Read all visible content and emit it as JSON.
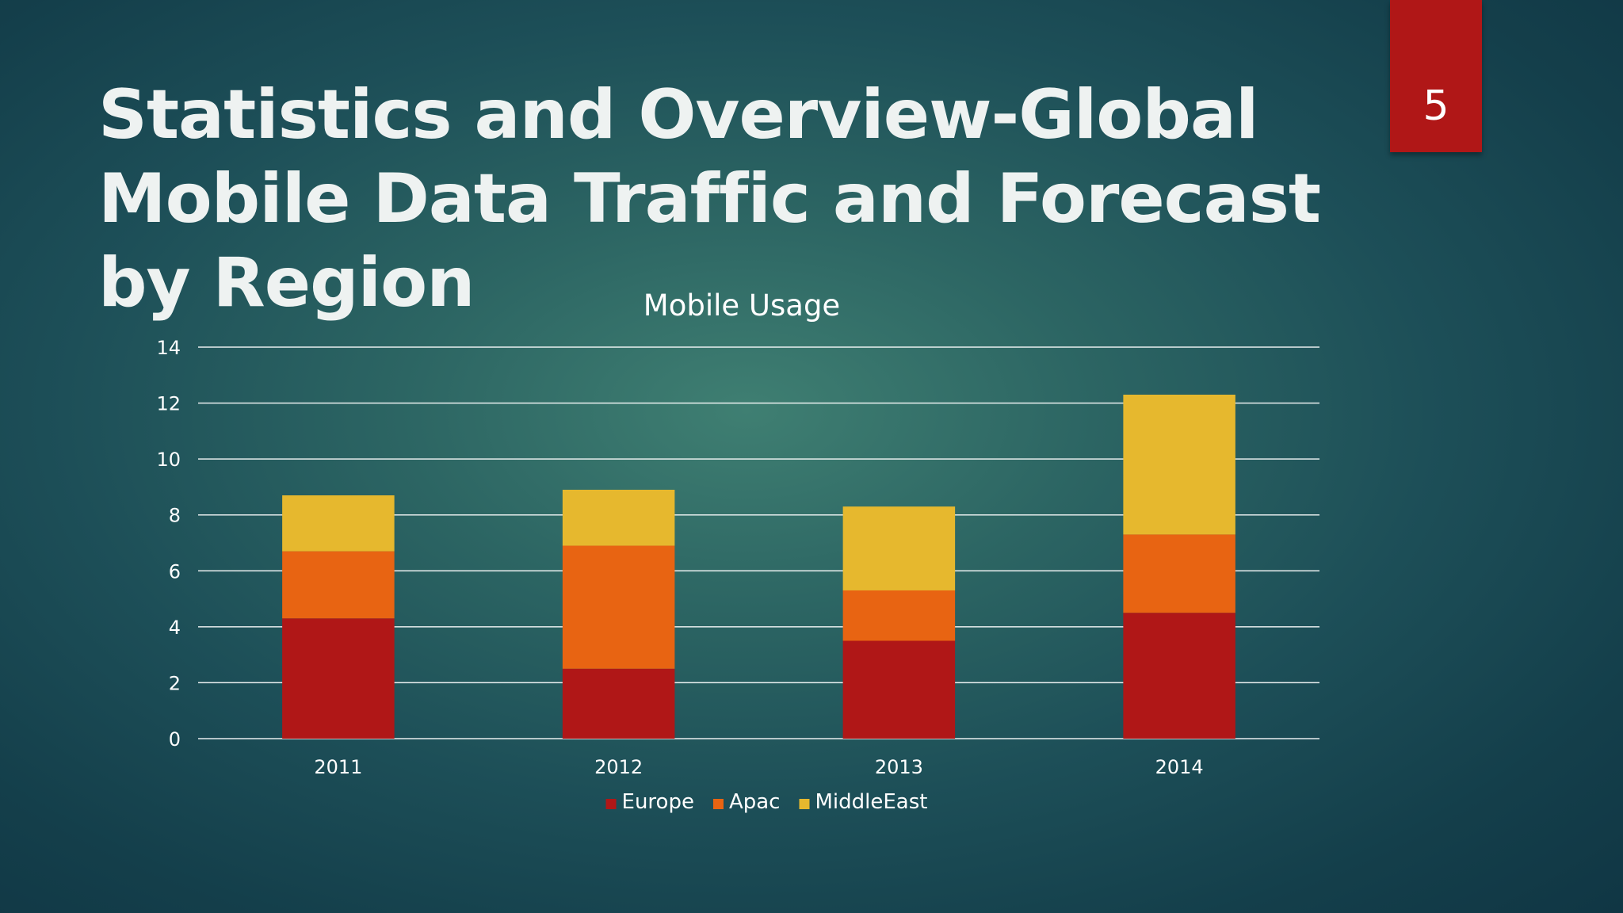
{
  "slide": {
    "title": "Statistics and Overview-Global Mobile Data Traffic and Forecast by Region",
    "page_number": "5",
    "accent_color": "#b01717"
  },
  "chart_data": {
    "type": "bar",
    "stacked": true,
    "title": "Mobile Usage",
    "categories": [
      "2011",
      "2012",
      "2013",
      "2014"
    ],
    "series": [
      {
        "name": "Europe",
        "color": "#b01717",
        "values": [
          4.3,
          2.5,
          3.5,
          4.5
        ]
      },
      {
        "name": "Apac",
        "color": "#e86412",
        "values": [
          2.4,
          4.4,
          1.8,
          2.8
        ]
      },
      {
        "name": "MiddleEast",
        "color": "#e6b82e",
        "values": [
          2.0,
          2.0,
          3.0,
          5.0
        ]
      }
    ],
    "ylim": [
      0,
      14
    ],
    "yticks": [
      "0",
      "2",
      "4",
      "6",
      "8",
      "10",
      "12",
      "14"
    ],
    "ytick_values": [
      0,
      2,
      4,
      6,
      8,
      10,
      12,
      14
    ],
    "grid": true,
    "legend_position": "bottom",
    "gridline_color": "#ffffff",
    "text_color": "#ffffff"
  }
}
